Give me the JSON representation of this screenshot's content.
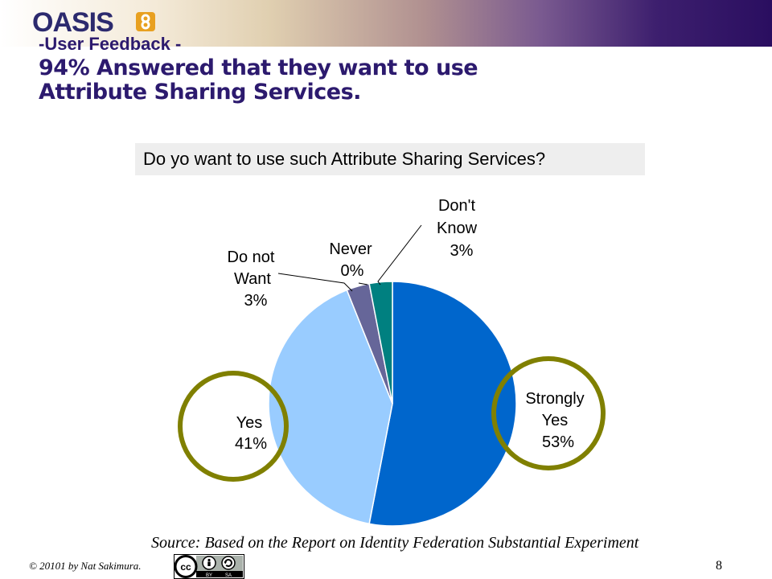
{
  "header": {
    "logo_text": "OASIS",
    "subtitle": "-User Feedback -",
    "title_line1": "94% Answered that they want to use",
    "title_line2": "Attribute Sharing Services."
  },
  "question": "Do yo want to use such Attribute Sharing Services?",
  "chart_data": {
    "type": "pie",
    "title": "Do yo want to use such Attribute Sharing Services?",
    "slices": [
      {
        "label": "Strongly Yes",
        "value": 53,
        "pct_label": "53%",
        "color": "#0066cc"
      },
      {
        "label": "Yes",
        "value": 41,
        "pct_label": "41%",
        "color": "#99ccff"
      },
      {
        "label": "Do not Want",
        "value": 3,
        "pct_label": "3%",
        "color": "#666699"
      },
      {
        "label": "Never",
        "value": 0,
        "pct_label": "0%",
        "color": "#993366"
      },
      {
        "label": "Don't Know",
        "value": 3,
        "pct_label": "3%",
        "color": "#008080"
      }
    ],
    "highlight_color": "#808000"
  },
  "labels": {
    "strongly_yes_1": "Strongly",
    "strongly_yes_2": "Yes",
    "strongly_yes_3": "53%",
    "yes_1": "Yes",
    "yes_2": "41%",
    "donot_1": "Do not",
    "donot_2": "Want",
    "donot_3": "3%",
    "never_1": "Never",
    "never_2": "0%",
    "dontknow_1": "Don't",
    "dontknow_2": "Know",
    "dontknow_3": "3%"
  },
  "footer": {
    "source": "Source: Based on the Report on Identity Federation Substantial Experiment",
    "copyright": "© 20101 by Nat Sakimura.",
    "page_number": "8",
    "license": {
      "cc": "cc",
      "by": "BY",
      "sa": "SA"
    }
  }
}
